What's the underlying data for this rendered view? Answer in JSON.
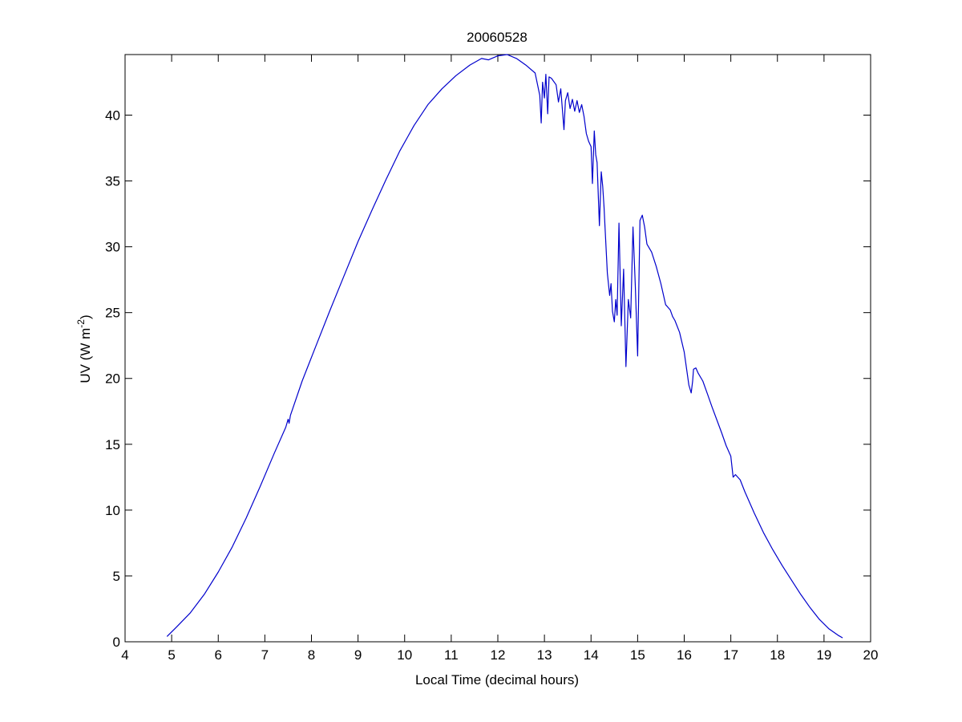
{
  "chart_data": {
    "type": "line",
    "title": "20060528",
    "xlabel": "Local Time (decimal hours)",
    "ylabel": {
      "main": "UV (W m",
      "sup": "-2",
      "close": ")"
    },
    "xlim": [
      4,
      20
    ],
    "ylim": [
      0,
      44.6
    ],
    "xticks": [
      4,
      5,
      6,
      7,
      8,
      9,
      10,
      11,
      12,
      13,
      14,
      15,
      16,
      17,
      18,
      19,
      20
    ],
    "yticks": [
      0,
      5,
      10,
      15,
      20,
      25,
      30,
      35,
      40
    ],
    "grid": false,
    "series": [
      {
        "color": "#0000cc",
        "x": [
          4.9,
          5.1,
          5.4,
          5.7,
          6.0,
          6.3,
          6.6,
          6.9,
          7.2,
          7.45,
          7.5,
          7.52,
          7.55,
          7.8,
          8.1,
          8.4,
          8.7,
          9.0,
          9.3,
          9.6,
          9.9,
          10.2,
          10.5,
          10.8,
          11.1,
          11.4,
          11.65,
          11.8,
          12.0,
          12.2,
          12.4,
          12.6,
          12.8,
          12.9,
          12.93,
          12.96,
          13.0,
          13.03,
          13.07,
          13.1,
          13.15,
          13.25,
          13.3,
          13.35,
          13.42,
          13.45,
          13.5,
          13.55,
          13.6,
          13.65,
          13.7,
          13.75,
          13.8,
          13.85,
          13.9,
          13.95,
          14.0,
          14.03,
          14.07,
          14.1,
          14.13,
          14.18,
          14.22,
          14.25,
          14.28,
          14.3,
          14.35,
          14.4,
          14.43,
          14.46,
          14.5,
          14.53,
          14.56,
          14.6,
          14.65,
          14.7,
          14.75,
          14.8,
          14.85,
          14.9,
          14.95,
          15.0,
          15.05,
          15.1,
          15.15,
          15.2,
          15.3,
          15.4,
          15.5,
          15.6,
          15.7,
          15.75,
          15.8,
          15.9,
          16.0,
          16.1,
          16.15,
          16.18,
          16.2,
          16.25,
          16.3,
          16.4,
          16.5,
          16.6,
          16.8,
          16.9,
          17.0,
          17.05,
          17.1,
          17.2,
          17.3,
          17.5,
          17.7,
          17.9,
          18.1,
          18.3,
          18.5,
          18.7,
          18.9,
          19.1,
          19.3,
          19.4
        ],
        "y": [
          0.4,
          1.1,
          2.2,
          3.6,
          5.3,
          7.2,
          9.4,
          11.8,
          14.3,
          16.3,
          16.9,
          16.6,
          17.2,
          19.8,
          22.5,
          25.2,
          27.8,
          30.4,
          32.8,
          35.1,
          37.3,
          39.2,
          40.8,
          42.0,
          43.0,
          43.8,
          44.3,
          44.2,
          44.5,
          44.6,
          44.3,
          43.8,
          43.2,
          41.5,
          39.4,
          42.5,
          41.3,
          43.1,
          40.1,
          42.9,
          42.8,
          42.3,
          41.0,
          42.0,
          38.9,
          41.1,
          41.7,
          40.5,
          41.2,
          40.3,
          41.1,
          40.2,
          40.8,
          39.9,
          38.6,
          38.0,
          37.6,
          34.8,
          38.8,
          37.0,
          36.4,
          31.6,
          35.7,
          34.6,
          33.0,
          31.5,
          28.0,
          26.3,
          27.2,
          25.1,
          24.3,
          26.0,
          24.8,
          31.8,
          24.0,
          28.3,
          20.9,
          26.0,
          24.6,
          31.5,
          27.0,
          21.7,
          32.0,
          32.4,
          31.5,
          30.2,
          29.6,
          28.5,
          27.2,
          25.6,
          25.2,
          24.7,
          24.4,
          23.5,
          22.0,
          19.5,
          18.9,
          19.8,
          20.7,
          20.8,
          20.4,
          19.8,
          18.8,
          17.8,
          15.9,
          14.9,
          14.1,
          12.5,
          12.7,
          12.3,
          11.4,
          9.8,
          8.3,
          7.0,
          5.8,
          4.7,
          3.6,
          2.6,
          1.7,
          1.0,
          0.5,
          0.3
        ]
      }
    ]
  }
}
